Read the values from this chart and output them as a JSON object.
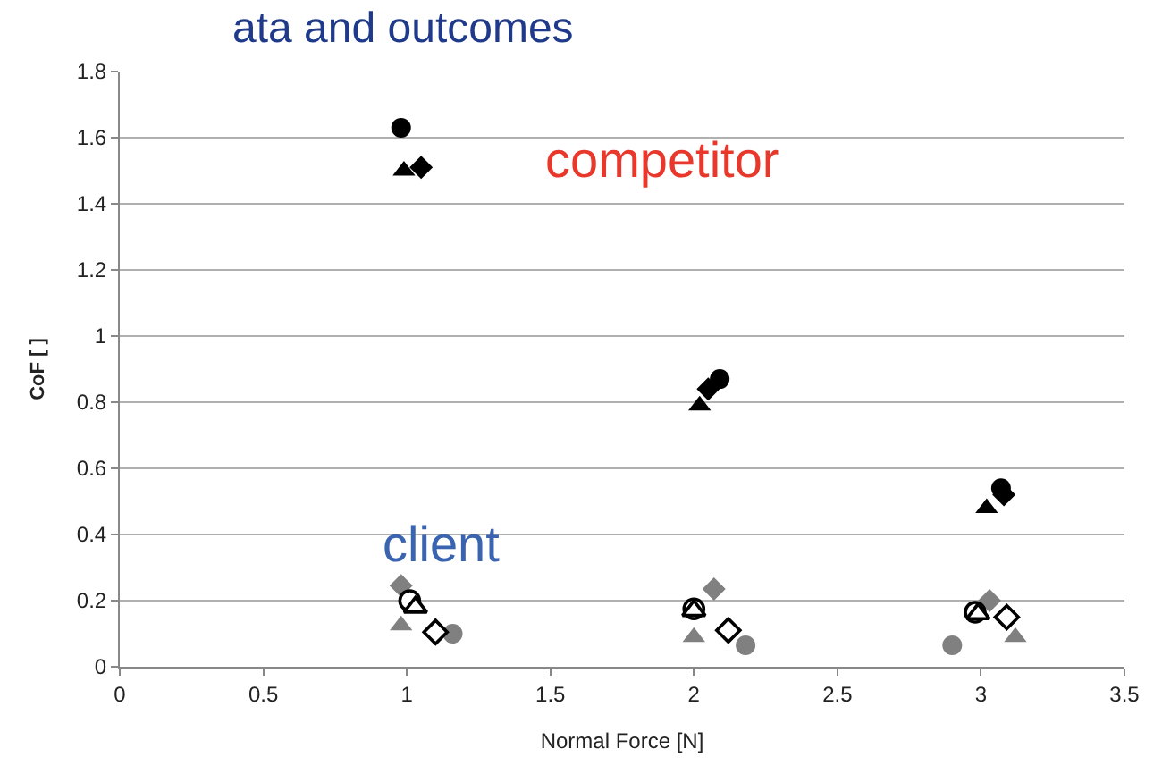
{
  "chart_data": {
    "type": "scatter",
    "title": "ata and outcomes",
    "xlabel": "Normal Force [N]",
    "ylabel": "CoF [ ]",
    "xlim": [
      0,
      3.5
    ],
    "xticks": [
      0,
      0.5,
      1,
      1.5,
      2,
      2.5,
      3,
      3.5
    ],
    "ylim": [
      0,
      1.8
    ],
    "yticks": [
      0,
      0.2,
      0.4,
      0.6,
      0.8,
      1,
      1.2,
      1.4,
      1.6,
      1.8
    ],
    "grid": "y",
    "series": [
      {
        "color": "#000000",
        "marker": "circle",
        "x": [
          0.98,
          2.09,
          3.07
        ],
        "values": [
          1.63,
          0.87,
          0.54
        ]
      },
      {
        "color": "#000000",
        "marker": "triangle",
        "x": [
          0.99,
          2.02,
          3.02
        ],
        "values": [
          1.5,
          0.79,
          0.48
        ]
      },
      {
        "color": "#000000",
        "marker": "diamond",
        "x": [
          1.05,
          2.05,
          3.08
        ],
        "values": [
          1.51,
          0.84,
          0.52
        ]
      },
      {
        "color": "#808080",
        "marker": "diamond",
        "x": [
          0.98,
          2.07,
          3.03
        ],
        "values": [
          0.245,
          0.235,
          0.2
        ]
      },
      {
        "color": "#808080",
        "marker": "triangle",
        "x": [
          0.98,
          2.0,
          3.12
        ],
        "values": [
          0.125,
          0.09,
          0.09
        ]
      },
      {
        "color": "#808080",
        "marker": "circle",
        "x": [
          1.16,
          2.18,
          2.9
        ],
        "values": [
          0.1,
          0.065,
          0.065
        ]
      },
      {
        "color": "#ffffff",
        "marker": "circle",
        "x": [
          1.01,
          2.0,
          2.98
        ],
        "values": [
          0.2,
          0.175,
          0.165
        ]
      },
      {
        "color": "#ffffff",
        "marker": "triangle",
        "x": [
          1.03,
          2.0,
          2.99
        ],
        "values": [
          0.18,
          0.17,
          0.16
        ]
      },
      {
        "color": "#ffffff",
        "marker": "diamond",
        "x": [
          1.1,
          2.12,
          3.09
        ],
        "values": [
          0.105,
          0.11,
          0.15
        ]
      }
    ],
    "annotations": [
      "competitor",
      "client"
    ]
  }
}
